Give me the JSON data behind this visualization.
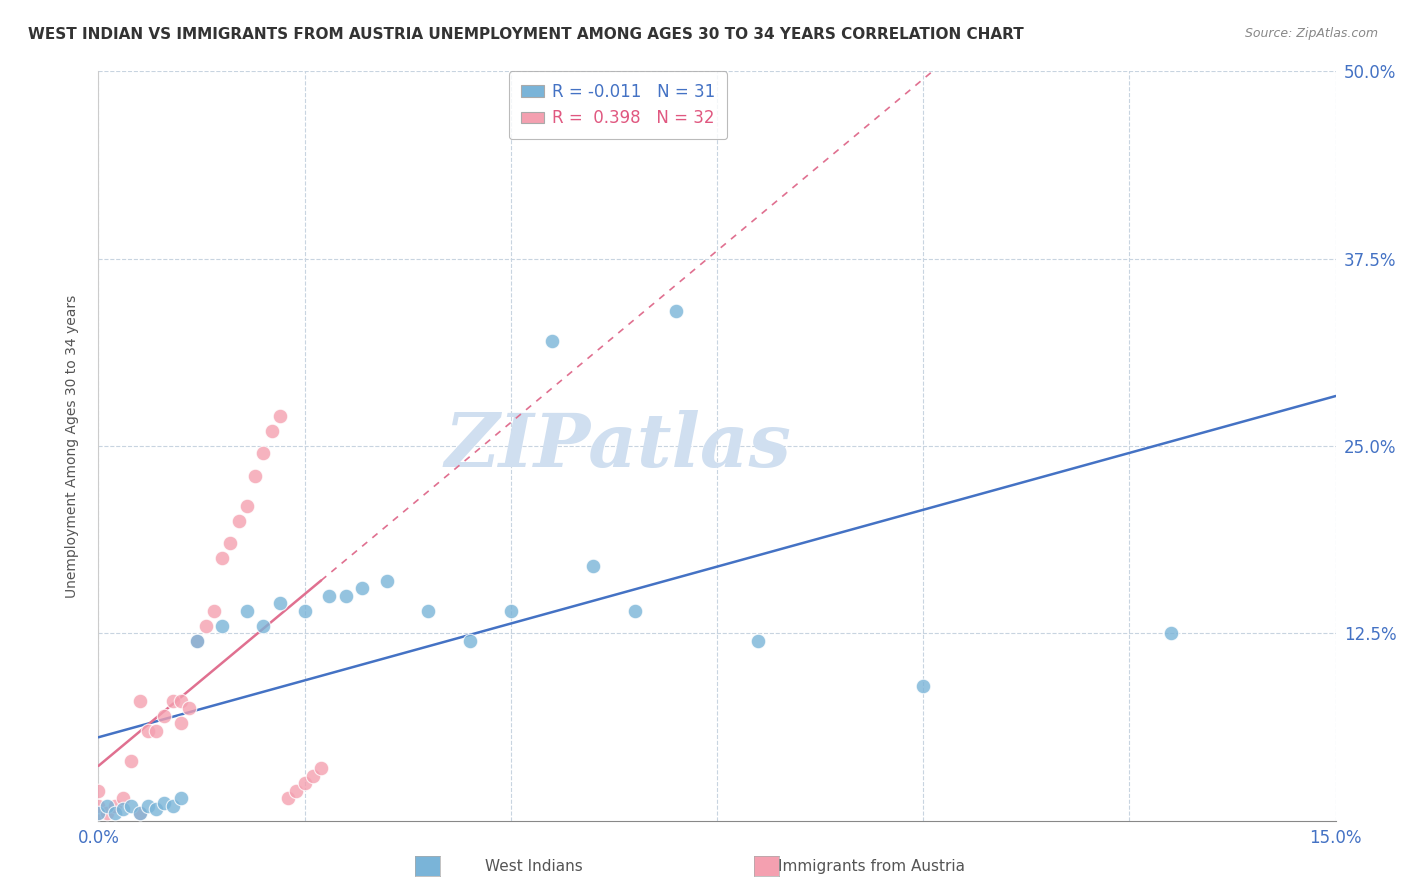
{
  "title": "WEST INDIAN VS IMMIGRANTS FROM AUSTRIA UNEMPLOYMENT AMONG AGES 30 TO 34 YEARS CORRELATION CHART",
  "source_text": "Source: ZipAtlas.com",
  "ylabel": "Unemployment Among Ages 30 to 34 years",
  "xlim": [
    0.0,
    0.15
  ],
  "ylim": [
    -0.02,
    0.52
  ],
  "plot_ylim": [
    0.0,
    0.5
  ],
  "xticks": [
    0.0,
    0.025,
    0.05,
    0.075,
    0.1,
    0.125,
    0.15
  ],
  "yticks": [
    0.0,
    0.125,
    0.25,
    0.375,
    0.5
  ],
  "ytick_labels": [
    "",
    "12.5%",
    "25.0%",
    "37.5%",
    "50.0%"
  ],
  "r_west_indian": -0.011,
  "n_west_indian": 31,
  "r_austria": 0.398,
  "n_austria": 32,
  "color_west_indian": "#7ab4d8",
  "color_austria": "#f4a0b0",
  "trendline_west": "#4472c4",
  "trendline_austria": "#e07090",
  "watermark": "ZIPatlas",
  "watermark_color": "#d0dff0",
  "legend_label_west": "West Indians",
  "legend_label_austria": "Immigrants from Austria",
  "west_indian_x": [
    0.0,
    0.001,
    0.002,
    0.003,
    0.004,
    0.005,
    0.006,
    0.007,
    0.008,
    0.009,
    0.01,
    0.012,
    0.015,
    0.018,
    0.02,
    0.022,
    0.025,
    0.028,
    0.03,
    0.032,
    0.035,
    0.04,
    0.045,
    0.05,
    0.055,
    0.06,
    0.065,
    0.07,
    0.08,
    0.1,
    0.13
  ],
  "west_indian_y": [
    0.005,
    0.01,
    0.005,
    0.008,
    0.01,
    0.005,
    0.01,
    0.008,
    0.012,
    0.01,
    0.015,
    0.12,
    0.13,
    0.14,
    0.13,
    0.145,
    0.14,
    0.15,
    0.15,
    0.155,
    0.16,
    0.14,
    0.12,
    0.14,
    0.32,
    0.17,
    0.14,
    0.34,
    0.12,
    0.09,
    0.125
  ],
  "austria_x": [
    0.0,
    0.0,
    0.0,
    0.001,
    0.002,
    0.003,
    0.004,
    0.005,
    0.005,
    0.006,
    0.007,
    0.008,
    0.009,
    0.01,
    0.01,
    0.011,
    0.012,
    0.013,
    0.014,
    0.015,
    0.016,
    0.017,
    0.018,
    0.019,
    0.02,
    0.021,
    0.022,
    0.023,
    0.024,
    0.025,
    0.026,
    0.027
  ],
  "austria_y": [
    0.005,
    0.01,
    0.02,
    0.005,
    0.01,
    0.015,
    0.04,
    0.005,
    0.08,
    0.06,
    0.06,
    0.07,
    0.08,
    0.08,
    0.065,
    0.075,
    0.12,
    0.13,
    0.14,
    0.175,
    0.185,
    0.2,
    0.21,
    0.23,
    0.245,
    0.26,
    0.27,
    0.015,
    0.02,
    0.025,
    0.03,
    0.035
  ]
}
